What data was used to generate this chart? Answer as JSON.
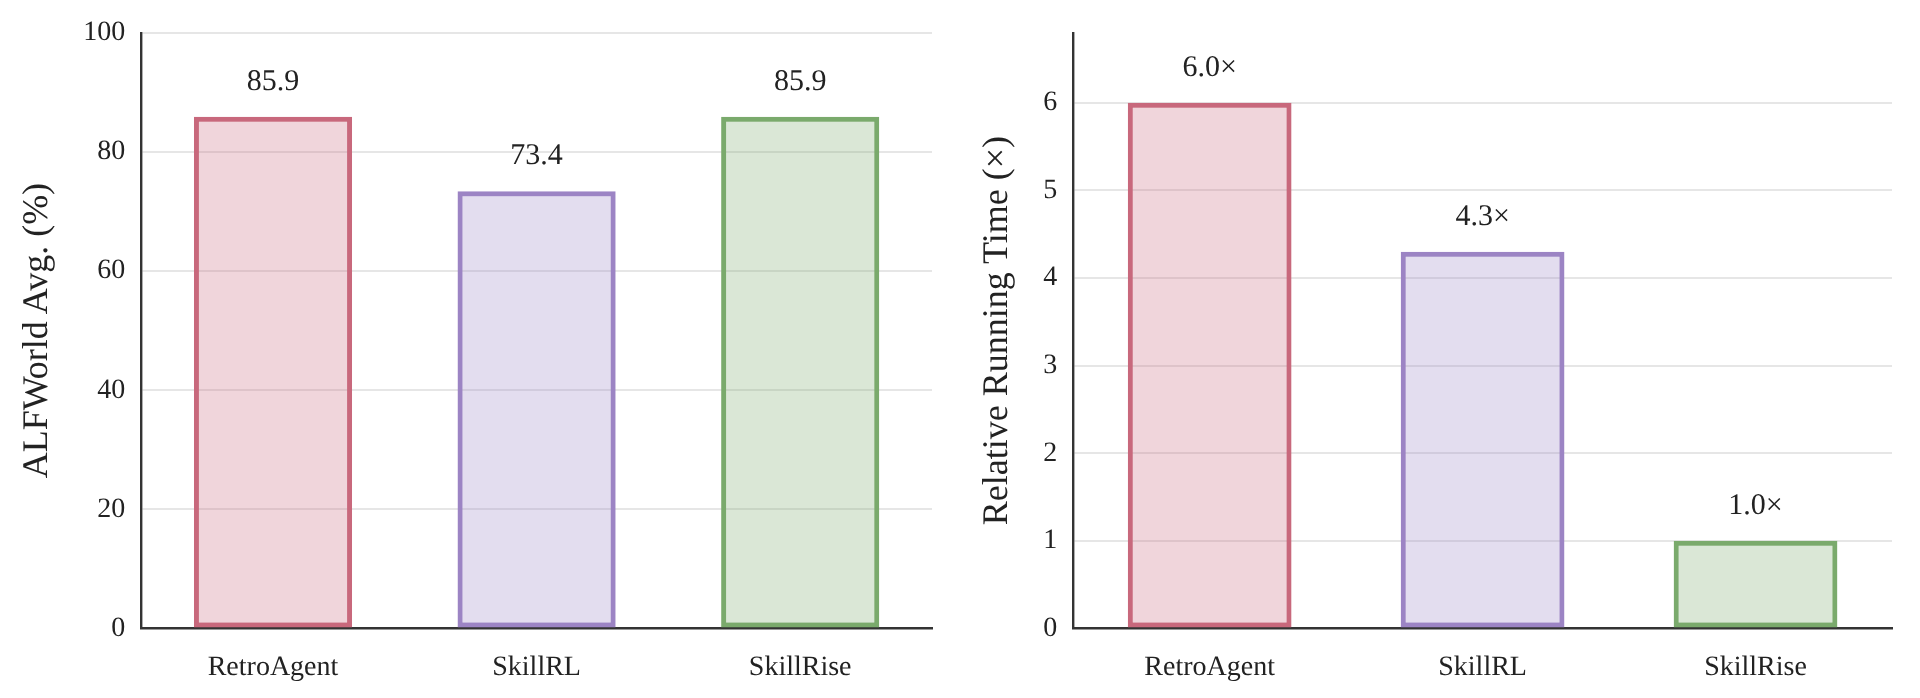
{
  "chart_data": [
    {
      "type": "bar",
      "ylabel": "ALFWorld Avg. (%)",
      "categories": [
        "RetroAgent",
        "SkillRL",
        "SkillRise"
      ],
      "values": [
        85.9,
        73.4,
        85.9
      ],
      "colors": [
        "#c8687c",
        "#9c84c4",
        "#7aaa6c"
      ],
      "ylim": [
        0,
        100
      ],
      "yticks": [
        0,
        20,
        40,
        60,
        80,
        100
      ],
      "grid": "y",
      "data_labels": true,
      "legend": false
    },
    {
      "type": "bar",
      "ylabel": "Relative Running Time (×)",
      "categories": [
        "RetroAgent",
        "SkillRL",
        "SkillRise"
      ],
      "values": [
        6.0,
        4.3,
        1.0
      ],
      "value_labels": [
        "6.0×",
        "4.3×",
        "1.0×"
      ],
      "colors": [
        "#c8687c",
        "#9c84c4",
        "#7aaa6c"
      ],
      "ylim": [
        0,
        6.8
      ],
      "yticks": [
        0,
        1,
        2,
        3,
        4,
        5,
        6
      ],
      "grid": "y",
      "legend": false
    }
  ]
}
